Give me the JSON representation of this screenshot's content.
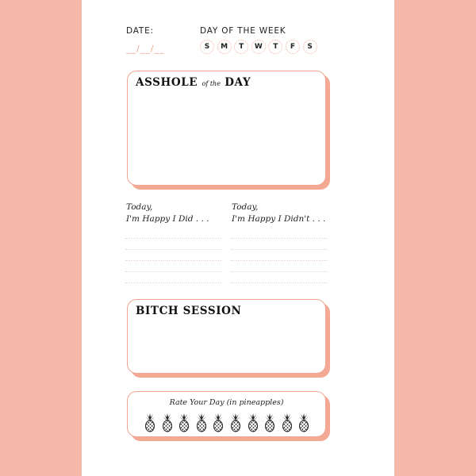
{
  "header": {
    "date_label": "DATE:",
    "date_blank": "__/__/__",
    "week_label": "DAY OF THE WEEK",
    "days": [
      "S",
      "M",
      "T",
      "W",
      "T",
      "F",
      "S"
    ]
  },
  "asshole_box": {
    "title_main": "ASSHOLE",
    "title_small": "of the",
    "title_end": "DAY"
  },
  "happy_did": {
    "line1": "Today,",
    "line2": "I'm Happy I Did . . ."
  },
  "happy_didnt": {
    "line1": "Today,",
    "line2": "I'm Happy I Didn't . . ."
  },
  "bitch_box": {
    "title": "BITCH SESSION"
  },
  "rating": {
    "label": "Rate Your Day (in pineapples)",
    "max": 10,
    "icon": "pineapple-icon"
  },
  "colors": {
    "background": "#f5b8a8",
    "accent": "#f2a592"
  }
}
